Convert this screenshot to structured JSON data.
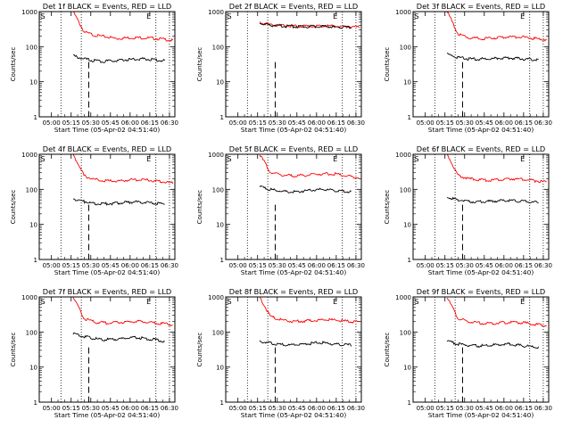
{
  "chart_data": [
    {
      "type": "line",
      "title": "Det 1f BLACK = Events, RED = LLD",
      "xlabel": "Start Time (05-Apr-02 04:51:40)",
      "ylabel": "Counts/sec",
      "x_ticks": [
        "05:00",
        "05:15",
        "05:30",
        "05:45",
        "06:00",
        "06:15",
        "06:30"
      ],
      "y_ticks": [
        "1",
        "10",
        "100",
        "1000"
      ],
      "yscale": "log",
      "ylim": [
        1,
        1000
      ],
      "markers": {
        "start": "S",
        "end": "E"
      },
      "series": [
        {
          "color": "#ff0000",
          "values": [
            1000,
            260,
            210,
            190,
            170,
            180,
            180,
            175,
            165,
            150
          ]
        },
        {
          "color": "#000000",
          "values": [
            55,
            45,
            40,
            38,
            40,
            42,
            44,
            45,
            42,
            40
          ]
        }
      ]
    },
    {
      "type": "line",
      "title": "Det 2f BLACK = Events, RED = LLD",
      "xlabel": "Start Time (05-Apr-02 04:51:40)",
      "ylabel": "Counts/sec",
      "x_ticks": [
        "05:00",
        "05:15",
        "05:30",
        "05:45",
        "06:00",
        "06:15",
        "06:30"
      ],
      "y_ticks": [
        "1",
        "10",
        "100",
        "1000"
      ],
      "yscale": "log",
      "ylim": [
        1,
        1000
      ],
      "markers": {
        "start": "S",
        "end": "E"
      },
      "series": [
        {
          "color": "#ff0000",
          "values": [
            500,
            420,
            400,
            390,
            380,
            385,
            390,
            380,
            370,
            360
          ]
        },
        {
          "color": "#000000",
          "values": [
            480,
            410,
            390,
            380,
            370,
            375,
            380,
            370,
            360,
            350
          ]
        }
      ]
    },
    {
      "type": "line",
      "title": "Det 3f BLACK = Events, RED = LLD",
      "xlabel": "Start Time (05-Apr-02 04:51:40)",
      "ylabel": "Counts/sec",
      "x_ticks": [
        "05:00",
        "05:15",
        "05:30",
        "05:45",
        "06:00",
        "06:15",
        "06:30"
      ],
      "y_ticks": [
        "1",
        "10",
        "100",
        "1000"
      ],
      "yscale": "log",
      "ylim": [
        1,
        1000
      ],
      "markers": {
        "start": "S",
        "end": "E"
      },
      "series": [
        {
          "color": "#ff0000",
          "values": [
            1000,
            230,
            180,
            170,
            175,
            185,
            190,
            185,
            170,
            160
          ]
        },
        {
          "color": "#000000",
          "values": [
            60,
            50,
            45,
            44,
            45,
            47,
            48,
            46,
            44,
            42
          ]
        }
      ]
    },
    {
      "type": "line",
      "title": "Det 4f BLACK = Events, RED = LLD",
      "xlabel": "Start Time (05-Apr-02 04:51:40)",
      "ylabel": "Counts/sec",
      "x_ticks": [
        "05:00",
        "05:15",
        "05:30",
        "05:45",
        "06:00",
        "06:15",
        "06:30"
      ],
      "y_ticks": [
        "1",
        "10",
        "100",
        "1000"
      ],
      "yscale": "log",
      "ylim": [
        1,
        1000
      ],
      "markers": {
        "start": "S",
        "end": "E"
      },
      "series": [
        {
          "color": "#ff0000",
          "values": [
            1000,
            240,
            190,
            175,
            170,
            185,
            190,
            180,
            165,
            150
          ]
        },
        {
          "color": "#000000",
          "values": [
            55,
            45,
            40,
            38,
            40,
            42,
            44,
            42,
            40,
            38
          ]
        }
      ]
    },
    {
      "type": "line",
      "title": "Det 5f BLACK = Events, RED = LLD",
      "xlabel": "Start Time (05-Apr-02 04:51:40)",
      "ylabel": "Counts/sec",
      "x_ticks": [
        "05:00",
        "05:15",
        "05:30",
        "05:45",
        "06:00",
        "06:15",
        "06:30"
      ],
      "y_ticks": [
        "1",
        "10",
        "100",
        "1000"
      ],
      "yscale": "log",
      "ylim": [
        1,
        1000
      ],
      "markers": {
        "start": "S",
        "end": "E"
      },
      "series": [
        {
          "color": "#ff0000",
          "values": [
            1000,
            300,
            260,
            240,
            250,
            270,
            280,
            270,
            240,
            210
          ]
        },
        {
          "color": "#000000",
          "values": [
            120,
            100,
            90,
            85,
            88,
            95,
            100,
            95,
            90,
            85
          ]
        }
      ]
    },
    {
      "type": "line",
      "title": "Det 6f BLACK = Events, RED = LLD",
      "xlabel": "Start Time (05-Apr-02 04:51:40)",
      "ylabel": "Counts/sec",
      "x_ticks": [
        "05:00",
        "05:15",
        "05:30",
        "05:45",
        "06:00",
        "06:15",
        "06:30"
      ],
      "y_ticks": [
        "1",
        "10",
        "100",
        "1000"
      ],
      "yscale": "log",
      "ylim": [
        1,
        1000
      ],
      "markers": {
        "start": "S",
        "end": "E"
      },
      "series": [
        {
          "color": "#ff0000",
          "values": [
            1000,
            250,
            200,
            185,
            180,
            190,
            200,
            190,
            175,
            160
          ]
        },
        {
          "color": "#000000",
          "values": [
            60,
            50,
            46,
            44,
            45,
            47,
            48,
            46,
            44,
            42
          ]
        }
      ]
    },
    {
      "type": "line",
      "title": "Det 7f BLACK = Events, RED = LLD",
      "xlabel": "Start Time (05-Apr-02 04:51:40)",
      "ylabel": "Counts/sec",
      "x_ticks": [
        "05:00",
        "05:15",
        "05:30",
        "05:45",
        "06:00",
        "06:15",
        "06:30"
      ],
      "y_ticks": [
        "1",
        "10",
        "100",
        "1000"
      ],
      "yscale": "log",
      "ylim": [
        1,
        1000
      ],
      "markers": {
        "start": "S",
        "end": "E"
      },
      "series": [
        {
          "color": "#ff0000",
          "values": [
            1000,
            240,
            190,
            180,
            185,
            195,
            200,
            185,
            175,
            160
          ]
        },
        {
          "color": "#000000",
          "values": [
            90,
            75,
            65,
            60,
            62,
            66,
            70,
            66,
            60,
            55
          ]
        }
      ]
    },
    {
      "type": "line",
      "title": "Det 8f BLACK = Events, RED = LLD",
      "xlabel": "Start Time (05-Apr-02 04:51:40)",
      "ylabel": "Counts/sec",
      "x_ticks": [
        "05:00",
        "05:15",
        "05:30",
        "05:45",
        "06:00",
        "06:15",
        "06:30"
      ],
      "y_ticks": [
        "1",
        "10",
        "100",
        "1000"
      ],
      "yscale": "log",
      "ylim": [
        1,
        1000
      ],
      "markers": {
        "start": "S",
        "end": "E"
      },
      "series": [
        {
          "color": "#ff0000",
          "values": [
            1000,
            270,
            220,
            200,
            205,
            215,
            225,
            215,
            200,
            190
          ]
        },
        {
          "color": "#000000",
          "values": [
            55,
            48,
            44,
            42,
            44,
            47,
            50,
            46,
            44,
            42
          ]
        }
      ]
    },
    {
      "type": "line",
      "title": "Det 9f BLACK = Events, RED = LLD",
      "xlabel": "Start Time (05-Apr-02 04:51:40)",
      "ylabel": "Counts/sec",
      "x_ticks": [
        "05:00",
        "05:15",
        "05:30",
        "05:45",
        "06:00",
        "06:15",
        "06:30"
      ],
      "y_ticks": [
        "1",
        "10",
        "100",
        "1000"
      ],
      "yscale": "log",
      "ylim": [
        1,
        1000
      ],
      "markers": {
        "start": "S",
        "end": "E"
      },
      "series": [
        {
          "color": "#ff0000",
          "values": [
            1000,
            240,
            195,
            180,
            175,
            185,
            190,
            180,
            165,
            150
          ]
        },
        {
          "color": "#000000",
          "values": [
            55,
            46,
            42,
            40,
            41,
            43,
            45,
            42,
            39,
            36
          ]
        }
      ]
    }
  ]
}
